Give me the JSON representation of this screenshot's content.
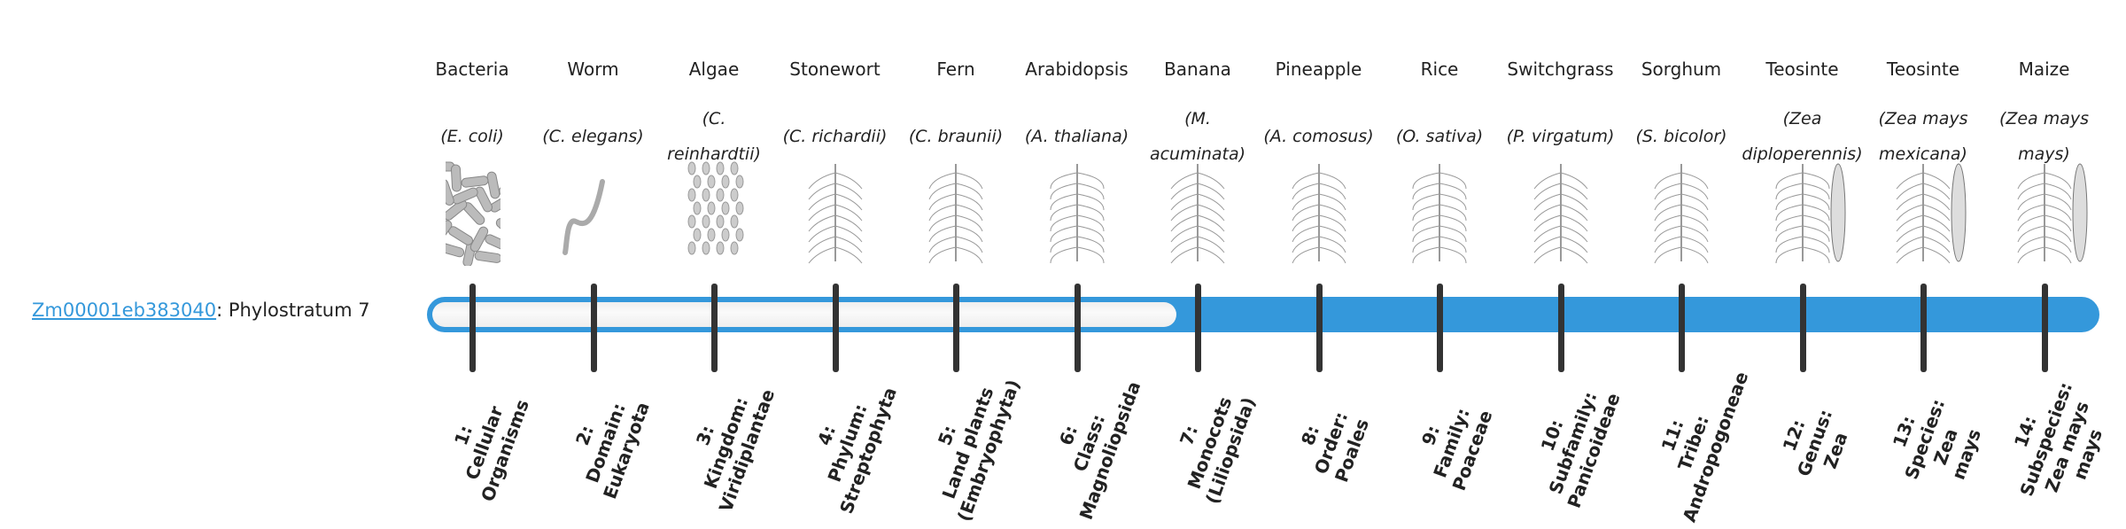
{
  "gene": {
    "id": "Zm00001eb383040",
    "suffix": ": Phylostratum 7",
    "phylostratum": 7
  },
  "colors": {
    "bar": "#3498db",
    "tick": "#333333",
    "link": "#3498db"
  },
  "organisms": [
    {
      "name": "Bacteria",
      "sci": "(E. coli)",
      "icon": "bacteria-icon"
    },
    {
      "name": "Worm",
      "sci": "(C. elegans)",
      "icon": "worm-icon"
    },
    {
      "name": "Algae",
      "sci": "(C. reinhardtii)",
      "icon": "algae-icon"
    },
    {
      "name": "Stonewort",
      "sci": "(C. richardii)",
      "icon": "stonewort-icon"
    },
    {
      "name": "Fern",
      "sci": "(C. braunii)",
      "icon": "fern-icon"
    },
    {
      "name": "Arabidopsis",
      "sci": "(A. thaliana)",
      "icon": "arabidopsis-icon"
    },
    {
      "name": "Banana",
      "sci": "(M. acuminata)",
      "icon": "banana-icon"
    },
    {
      "name": "Pineapple",
      "sci": "(A. comosus)",
      "icon": "pineapple-icon"
    },
    {
      "name": "Rice",
      "sci": "(O. sativa)",
      "icon": "rice-icon"
    },
    {
      "name": "Switchgrass",
      "sci": "(P. virgatum)",
      "icon": "switchgrass-icon"
    },
    {
      "name": "Sorghum",
      "sci": "(S. bicolor)",
      "icon": "sorghum-icon"
    },
    {
      "name": "Teosinte",
      "sci": "(Zea diploperennis)",
      "icon": "teosinte-icon"
    },
    {
      "name": "Teosinte",
      "sci": "(Zea mays mexicana)",
      "icon": "teosinte-icon"
    },
    {
      "name": "Maize",
      "sci": "(Zea mays mays)",
      "icon": "maize-icon"
    }
  ],
  "strata": [
    [
      "1:",
      "Cellular",
      "Organisms"
    ],
    [
      "2:",
      "Domain:",
      "Eukaryota"
    ],
    [
      "3:",
      "Kingdom:",
      "Viridiplantae"
    ],
    [
      "4:",
      "Phylum:",
      "Streptophyta"
    ],
    [
      "5:",
      "Land plants",
      "(Embryophyta)"
    ],
    [
      "6:",
      "Class:",
      "Magnoliopsida"
    ],
    [
      "7:",
      "Monocots",
      "(Liliopsida)"
    ],
    [
      "8:",
      "Order:",
      "Poales"
    ],
    [
      "9:",
      "Family:",
      "Poaceae"
    ],
    [
      "10:",
      "Subfamily:",
      "Panicoideae"
    ],
    [
      "11:",
      "Tribe:",
      "Andropogoneae"
    ],
    [
      "12:",
      "Genus:",
      "Zea"
    ],
    [
      "13:",
      "Species:",
      "Zea",
      "mays"
    ],
    [
      "14:",
      "Subspecies:",
      "Zea mays",
      "mays"
    ]
  ]
}
